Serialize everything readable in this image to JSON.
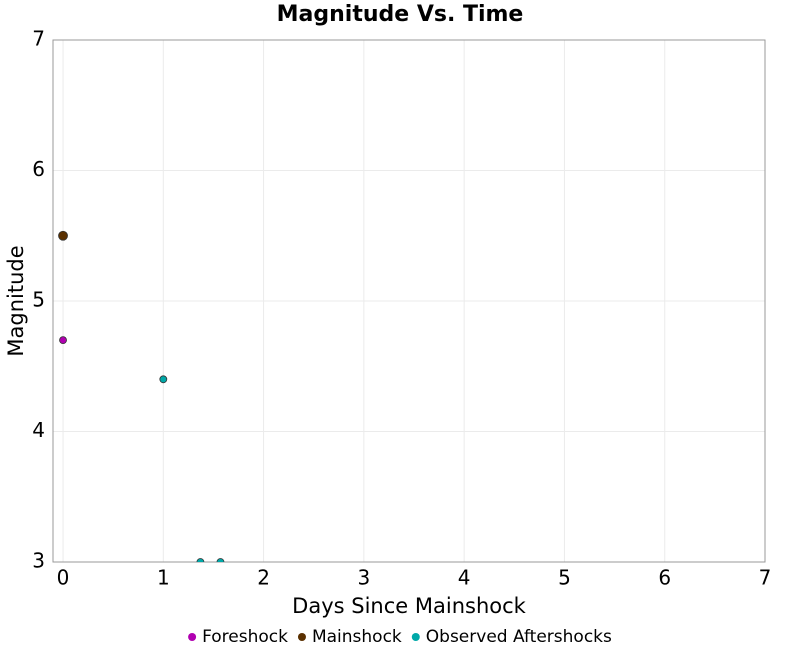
{
  "chart_data": {
    "type": "scatter",
    "title": "Magnitude Vs. Time",
    "x_label": "Days Since Mainshock",
    "y_label": "Magnitude",
    "xlim": [
      -0.1,
      7
    ],
    "ylim": [
      3,
      7
    ],
    "xticks": [
      0,
      1,
      2,
      3,
      4,
      5,
      6,
      7
    ],
    "yticks": [
      3,
      4,
      5,
      6,
      7
    ],
    "grid": true,
    "legend": "bottom",
    "series": [
      {
        "name": "Foreshock",
        "color": "#b000b0",
        "x": [
          0
        ],
        "values": [
          4.7
        ]
      },
      {
        "name": "Mainshock",
        "color": "#5a3000",
        "x": [
          0
        ],
        "values": [
          5.5
        ]
      },
      {
        "name": "Observed Aftershocks",
        "color": "#00a8a8",
        "x": [
          1.0,
          1.37,
          1.57
        ],
        "values": [
          4.4,
          3.0,
          3.0
        ]
      }
    ]
  }
}
